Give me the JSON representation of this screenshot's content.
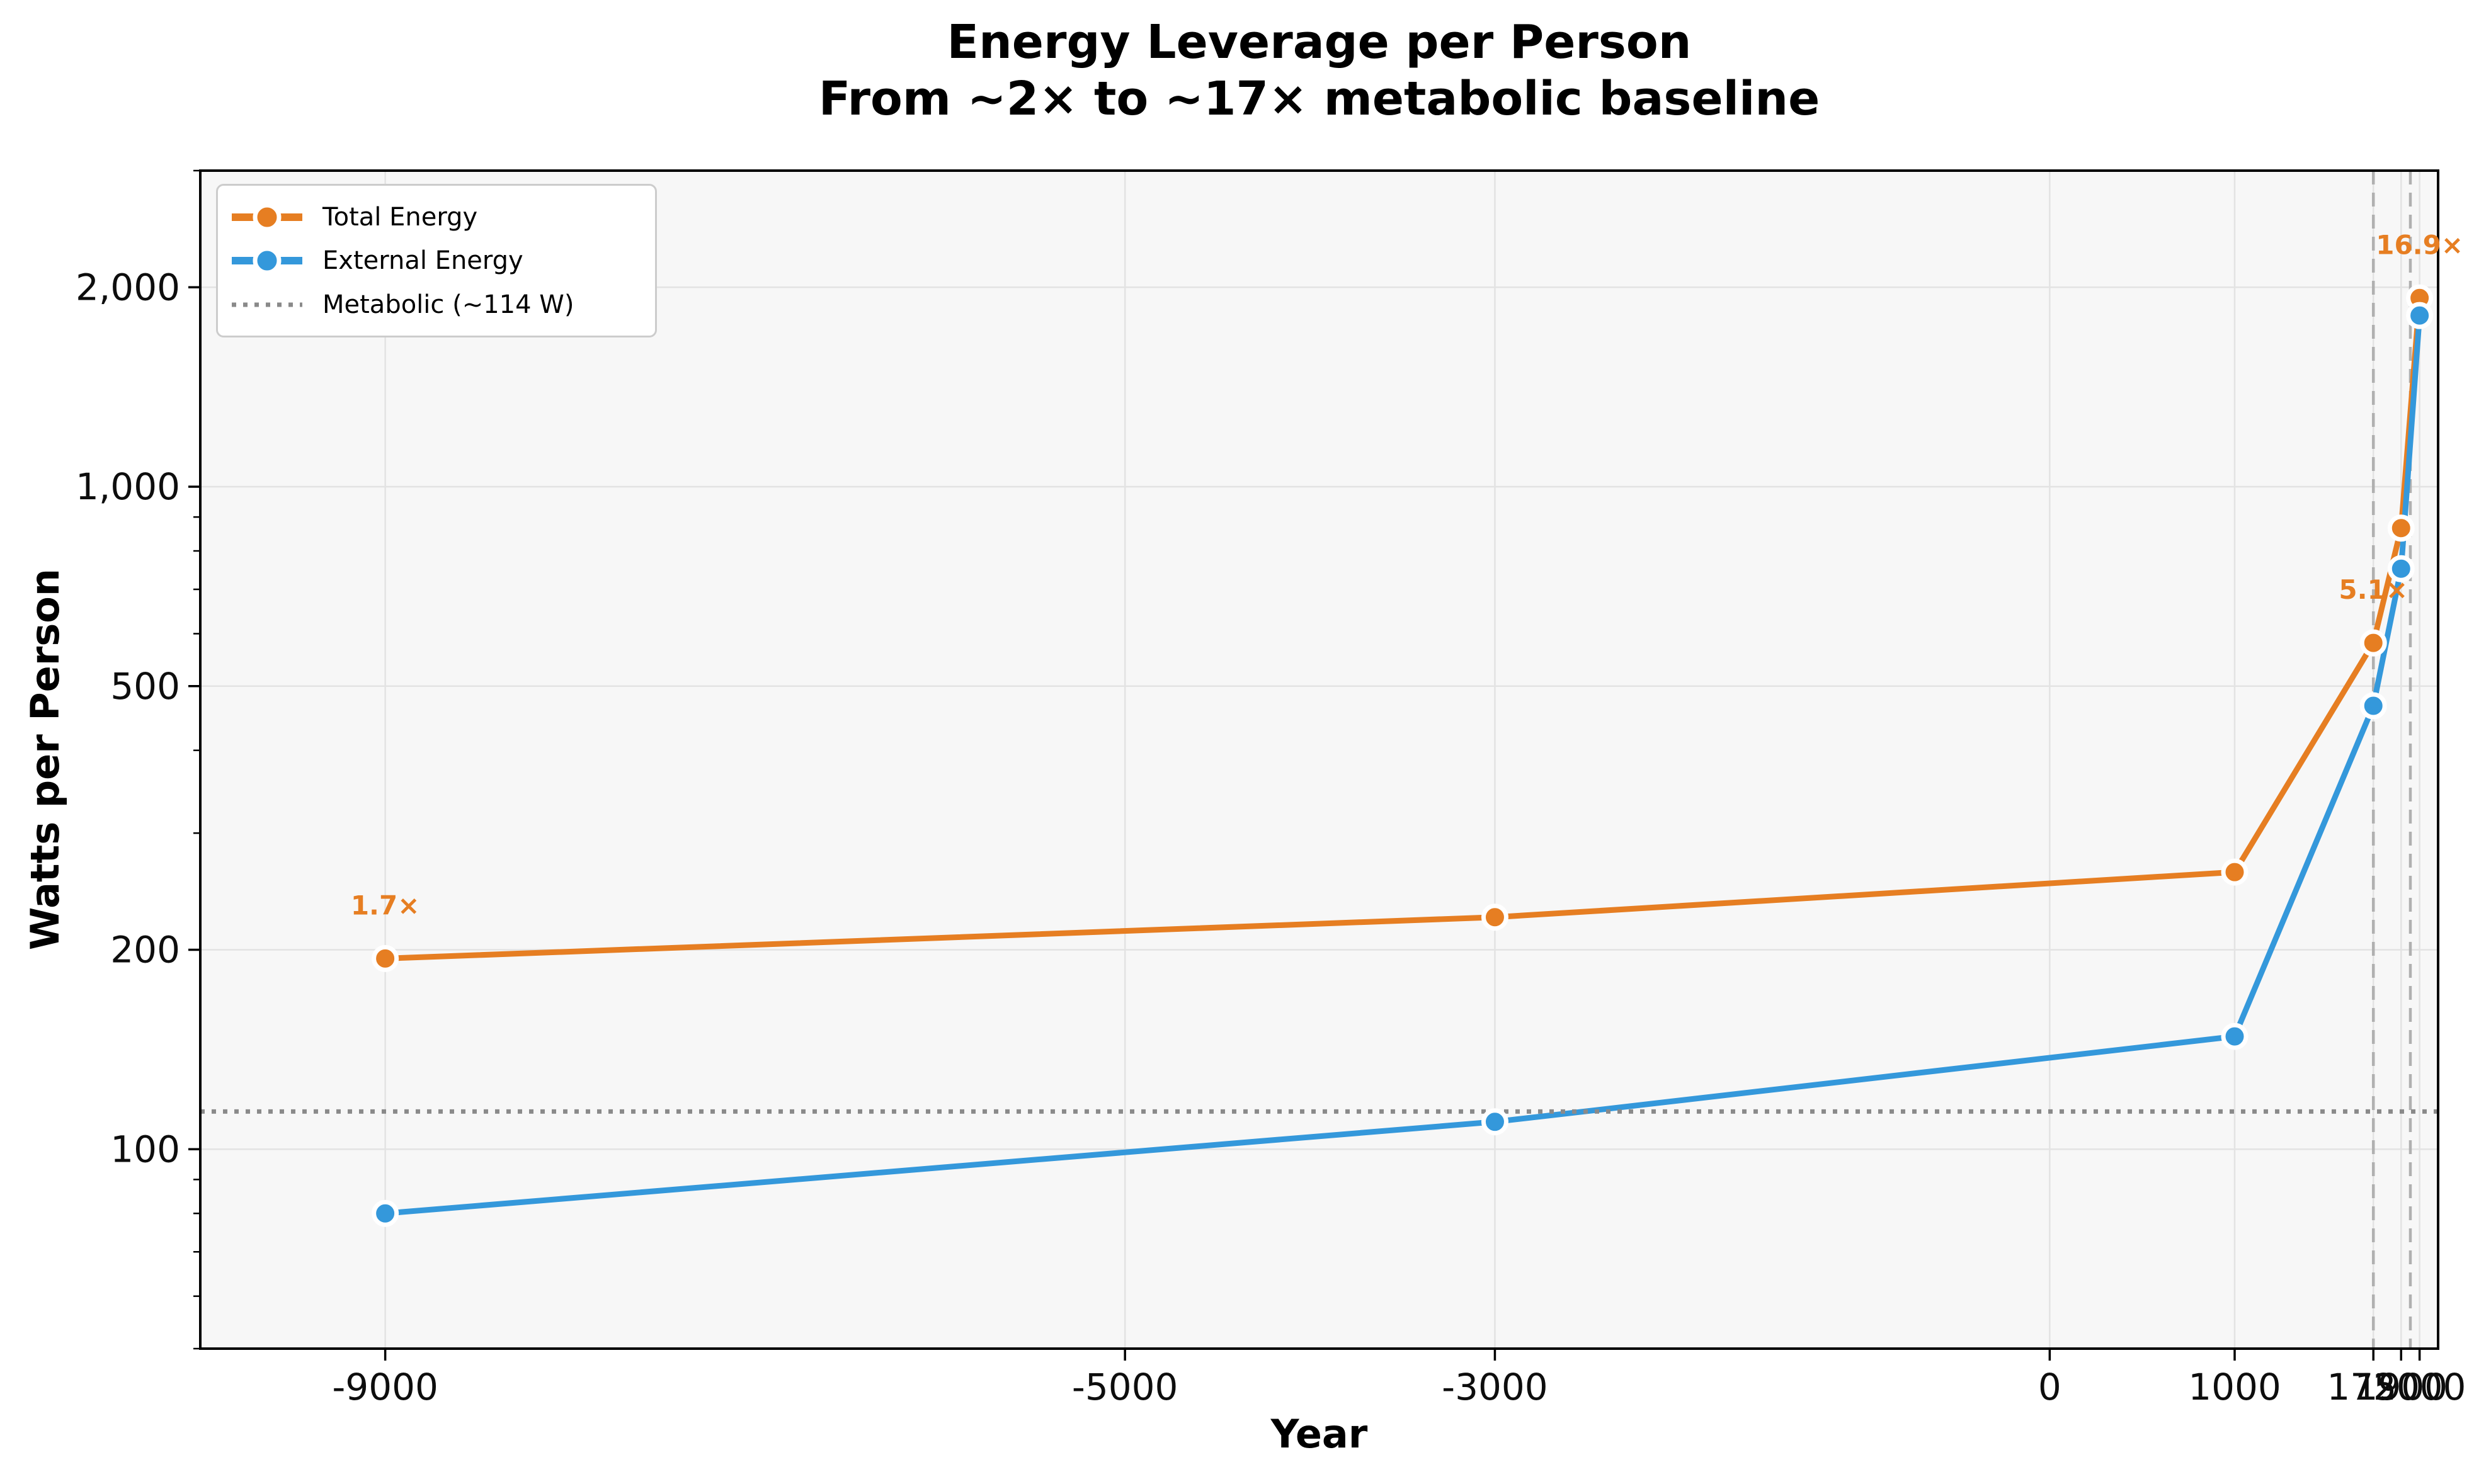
{
  "chart_data": {
    "type": "line",
    "title": "Energy Leverage per Person",
    "subtitle": "From ~2× to ~17× metabolic baseline",
    "xlabel": "Year",
    "ylabel": "Watts per Person",
    "x": [
      -9000,
      -3000,
      1000,
      1750,
      1900,
      2000
    ],
    "series": [
      {
        "name": "Total Energy",
        "color": "#e67e22",
        "values": [
          194,
          224,
          262,
          581,
          866,
          1927
        ]
      },
      {
        "name": "External Energy",
        "color": "#3498db",
        "values": [
          80,
          110,
          148,
          467,
          752,
          1813
        ]
      }
    ],
    "metabolic_line": {
      "label": "Metabolic (~114 W)",
      "value": 114,
      "color": "#8a8a8a",
      "style": "dotted"
    },
    "vlines": [
      {
        "x": 1750
      },
      {
        "x": 1950
      }
    ],
    "vline_color": "#b0b0b0",
    "annotations": [
      {
        "x": -9000,
        "y": 194,
        "label": "1.7×"
      },
      {
        "x": 1750,
        "y": 581,
        "label": "5.1×"
      },
      {
        "x": 2000,
        "y": 1927,
        "label": "16.9×"
      }
    ],
    "x_ticks": [
      {
        "value": -9000,
        "label": "-9000"
      },
      {
        "value": -5000,
        "label": "-5000"
      },
      {
        "value": -3000,
        "label": "-3000"
      },
      {
        "value": 0,
        "label": "0"
      },
      {
        "value": 1000,
        "label": "1000"
      },
      {
        "value": 1750,
        "label": "1750"
      },
      {
        "value": 1900,
        "label": "1900"
      },
      {
        "value": 2000,
        "label": "2000"
      }
    ],
    "y_ticks": [
      {
        "value": 100,
        "label": "100"
      },
      {
        "value": 200,
        "label": "200"
      },
      {
        "value": 500,
        "label": "500"
      },
      {
        "value": 1000,
        "label": "1,000"
      },
      {
        "value": 2000,
        "label": "2,000"
      }
    ],
    "y_minor_ticks": [
      50,
      60,
      70,
      80,
      90,
      300,
      400,
      600,
      700,
      800,
      900,
      3000
    ],
    "xlim": [
      -10000,
      2100
    ],
    "ylim": [
      50,
      3000
    ],
    "y_scale": "log",
    "grid": true,
    "legend_position": "upper-left",
    "colors": {
      "axes_background": "#f7f7f7",
      "figure_background": "#ffffff",
      "grid": "#e3e3e3",
      "spine": "#000000",
      "tick_label": "#0d0d0d",
      "annotation": "#e67e22"
    }
  },
  "legend": {
    "items": [
      {
        "label": "Total Energy"
      },
      {
        "label": "External Energy"
      },
      {
        "label": "Metabolic (~114 W)"
      }
    ]
  }
}
